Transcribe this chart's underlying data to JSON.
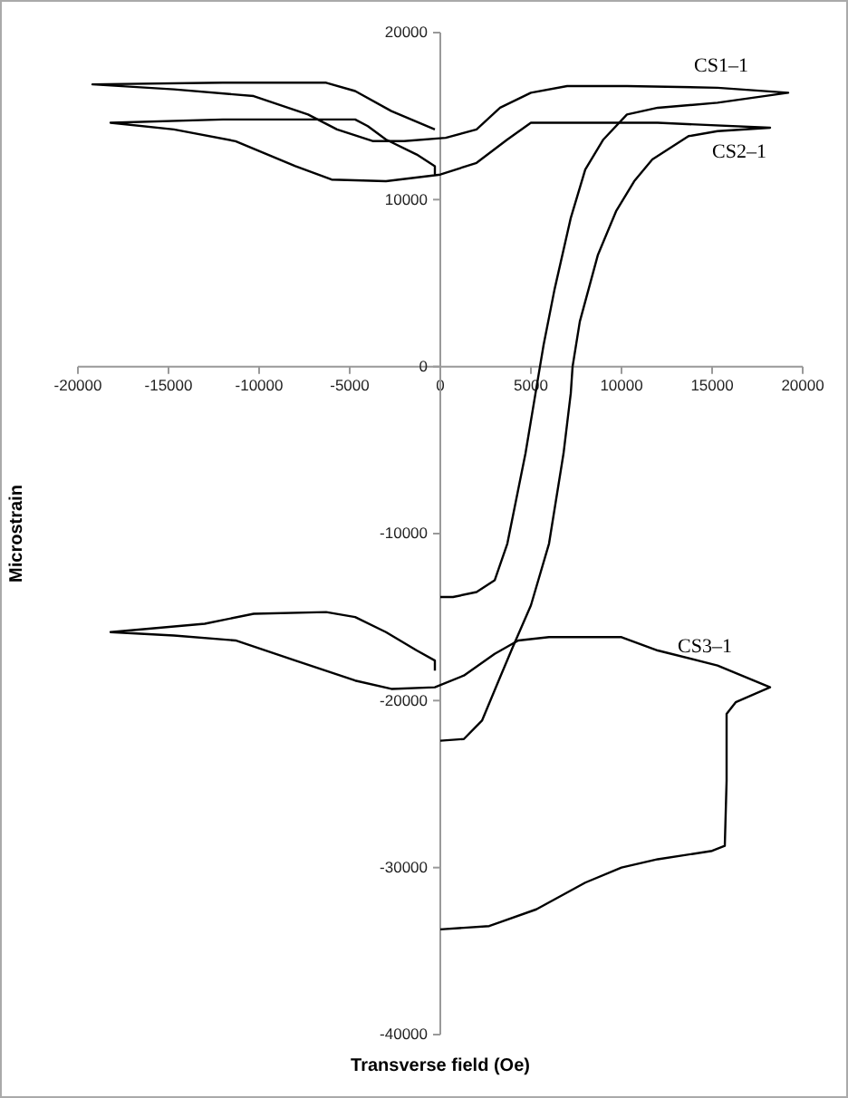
{
  "chart_data": {
    "type": "line",
    "xlabel": "Transverse field (Oe)",
    "ylabel": "Microstrain",
    "xlim": [
      -20000,
      20000
    ],
    "ylim": [
      -40000,
      20000
    ],
    "xticks": [
      -20000,
      -15000,
      -10000,
      -5000,
      0,
      5000,
      10000,
      15000,
      20000
    ],
    "yticks": [
      -40000,
      -30000,
      -20000,
      -10000,
      0,
      10000,
      20000
    ],
    "grid": false,
    "marker": "none",
    "line_style": "solid",
    "series": [
      {
        "name": "CS1‒1",
        "color": "#000000",
        "x": [
          -300,
          -2700,
          -4700,
          -6300,
          -12000,
          -19200,
          -14700,
          -10300,
          -7300,
          -5700,
          -3700,
          -2000,
          300,
          2000,
          3300,
          5000,
          7000,
          10300,
          15300,
          19200,
          15300,
          12000,
          10300,
          9000,
          8000,
          7200,
          6300,
          5700,
          5500,
          4700,
          3700,
          3000,
          2000,
          700,
          0
        ],
        "values": [
          14200,
          15300,
          16500,
          17000,
          17000,
          16900,
          16600,
          16200,
          15100,
          14200,
          13500,
          13500,
          13700,
          14200,
          15500,
          16400,
          16800,
          16800,
          16700,
          16400,
          15800,
          15500,
          15100,
          13600,
          11800,
          8900,
          4600,
          1300,
          0,
          -5200,
          -10600,
          -12800,
          -13500,
          -13800,
          -13800
        ]
      },
      {
        "name": "CS2‒1",
        "color": "#000000",
        "x": [
          -300,
          -300,
          -1300,
          -3000,
          -4000,
          -4700,
          -12000,
          -18200,
          -14700,
          -11300,
          -8000,
          -6000,
          -3000,
          0,
          2000,
          3700,
          5000,
          12000,
          18200,
          15300,
          13700,
          11700,
          10700,
          9700,
          8700,
          7700,
          7300,
          7200,
          6800,
          6000,
          5000,
          4000,
          3300,
          2300,
          1300,
          0
        ],
        "values": [
          11500,
          12000,
          12700,
          13600,
          14400,
          14800,
          14800,
          14600,
          14200,
          13500,
          12000,
          11200,
          11100,
          11500,
          12200,
          13600,
          14600,
          14600,
          14300,
          14100,
          13800,
          12400,
          11100,
          9300,
          6700,
          2700,
          0,
          -1600,
          -5200,
          -10600,
          -14300,
          -16800,
          -18600,
          -21200,
          -22300,
          -22400
        ]
      },
      {
        "name": "CS3‒1",
        "color": "#000000",
        "x": [
          -300,
          -300,
          -1300,
          -3000,
          -4700,
          -6300,
          -10300,
          -13000,
          -18200,
          -14700,
          -11300,
          -8000,
          -4700,
          -2700,
          -300,
          1300,
          3000,
          4300,
          6000,
          10000,
          12000,
          15300,
          18200,
          16300,
          15800,
          15800,
          15700,
          15000,
          12000,
          10000,
          8000,
          5300,
          2700,
          0
        ],
        "values": [
          -18200,
          -17600,
          -17000,
          -15900,
          -15000,
          -14700,
          -14800,
          -15400,
          -15900,
          -16100,
          -16400,
          -17600,
          -18800,
          -19300,
          -19200,
          -18500,
          -17200,
          -16400,
          -16200,
          -16200,
          -17000,
          -17900,
          -19200,
          -20100,
          -20800,
          -24800,
          -28700,
          -29000,
          -29500,
          -30000,
          -30900,
          -32500,
          -33500,
          -33700
        ]
      }
    ]
  }
}
